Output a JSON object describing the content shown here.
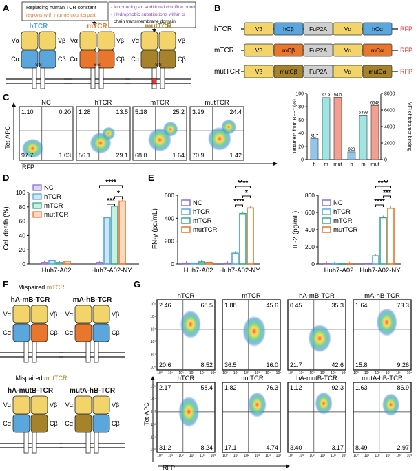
{
  "colors": {
    "hTCR": "#5aa6dd",
    "mTCR": "#e8762c",
    "mutTCR": "#a6822a",
    "variable": "#f2d46a",
    "fup2a": "#cfcfcf",
    "rfp": "#e03a3a",
    "nc": "#8f6fd0",
    "hbar": "#8fc6ec",
    "mbar": "#9fe6e3",
    "mutbar": "#f4a090",
    "annot_orange": "#e8762c",
    "annot_purple": "#8e3fbf"
  },
  "panel_a": {
    "letter": "A",
    "note_left": [
      "Replacing human TCR constant",
      "regions with murine counterpart"
    ],
    "note_right": [
      "- Introducing an additional disulfide bond",
      "- Hydrophobic substitutions within α",
      "chain transmembrane domain"
    ],
    "constructs": [
      {
        "title": "hTCR",
        "va": "Vα",
        "vb": "Vβ",
        "ca": "Cα",
        "cb": "Cβ",
        "ss": "S S"
      },
      {
        "title": "mTCR",
        "va": "Vα",
        "vb": "Vβ",
        "ca": "Cα",
        "cb": "Cβ",
        "ss": "S S"
      },
      {
        "title": "mutTCR",
        "va": "Vα",
        "vb": "Vβ",
        "ca": "Cα",
        "cb": "Cβ",
        "ss": "S S"
      }
    ]
  },
  "panel_b": {
    "letter": "B",
    "rows": [
      {
        "name": "hTCR",
        "segments": [
          "Vβ",
          "hCβ",
          "FuP2A",
          "Vα",
          "hCα"
        ],
        "tail": "RFP"
      },
      {
        "name": "mTCR",
        "segments": [
          "Vβ",
          "mCβ",
          "FuP2A",
          "Vα",
          "mCα"
        ],
        "tail": "RFP"
      },
      {
        "name": "mutTCR",
        "segments": [
          "Vβ",
          "mutCβ",
          "FuP2A",
          "Vα",
          "mutCα"
        ],
        "tail": "RFP"
      }
    ]
  },
  "panel_c": {
    "letter": "C",
    "ylabel": "Tet-APC",
    "xlabel": "RFP",
    "plots": [
      {
        "title": "NC",
        "q": [
          "1.10",
          "0.20",
          "97.7",
          "1.03"
        ]
      },
      {
        "title": "hTCR",
        "q": [
          "1.28",
          "13.5",
          "56.1",
          "29.1"
        ]
      },
      {
        "title": "mTCR",
        "q": [
          "5.18",
          "25.2",
          "68.0",
          "1.64"
        ]
      },
      {
        "title": "mutTCR",
        "q": [
          "3.29",
          "24.4",
          "70.9",
          "1.42"
        ]
      }
    ]
  },
  "panel_c_bar": {
    "ylabel_left": "Tetramer⁺ from RFP⁺ (%)",
    "ylabel_right": "MFI of tetramer binding",
    "left_ticks": [
      "0",
      "20",
      "40",
      "60",
      "80",
      "100"
    ],
    "right_ticks": [
      "0",
      "2000",
      "4000",
      "6000",
      "8000"
    ],
    "categories": [
      "h",
      "m",
      "mut",
      "h",
      "m",
      "mut"
    ],
    "labels": [
      "31.7",
      "93.9",
      "94.5",
      "923",
      "5393",
      "6548"
    ]
  },
  "panel_d": {
    "letter": "D",
    "ylabel": "Cell death (%)",
    "ticks": [
      "0",
      "20",
      "40",
      "60",
      "80",
      "100"
    ],
    "groups": [
      "Huh7-A02",
      "Huh7-A02-NY"
    ],
    "legend": [
      "NC",
      "hTCR",
      "mTCR",
      "mutTCR"
    ],
    "sig": [
      "****",
      "***",
      "*"
    ]
  },
  "panel_e": {
    "letter": "E",
    "ifn": {
      "ylabel": "IFN-γ (pg/mL)",
      "ticks": [
        "0",
        "200",
        "400",
        "600"
      ],
      "groups": [
        "Huh7-A02",
        "Huh7-A02-NY"
      ],
      "sig": [
        "****",
        "*",
        "****"
      ]
    },
    "il2": {
      "ylabel": "IL-2 (pg/mL)",
      "ticks": [
        "0",
        "200",
        "400",
        "600",
        "800"
      ],
      "groups": [
        "Huh7-A02",
        "Huh7-A02-NY"
      ],
      "sig": [
        "****",
        "***",
        "****"
      ]
    },
    "legend": [
      "NC",
      "hTCR",
      "mTCR",
      "mutTCR"
    ]
  },
  "panel_f": {
    "letter": "F",
    "title1_prefix": "Mispaired ",
    "title1_colored": "mTCR",
    "title2_prefix": "Mispaired ",
    "title2_colored": "mutTCR",
    "constructs": [
      {
        "title": "hA-mB-TCR",
        "va": "Vα",
        "vb": "Vβ",
        "ca": "Cα",
        "cb": "Cβ"
      },
      {
        "title": "mA-hB-TCR",
        "va": "Vα",
        "vb": "Vβ",
        "ca": "Cα",
        "cb": "Cβ"
      },
      {
        "title": "hA-mutB-TCR",
        "va": "Vα",
        "vb": "Vβ",
        "ca": "Cα",
        "cb": "Cβ"
      },
      {
        "title": "mutA-hB-TCR",
        "va": "Vα",
        "vb": "Vβ",
        "ca": "Cα",
        "cb": "Cβ"
      }
    ]
  },
  "panel_g": {
    "letter": "G",
    "ylabel": "Tet-APC",
    "xlabel": "RFP",
    "axis_ticks": [
      "10⁰",
      "10¹",
      "10²",
      "10³",
      "10⁴",
      "10⁵"
    ],
    "plots": [
      {
        "title": "hTCR",
        "q": [
          "2.46",
          "68.5",
          "20.6",
          "8.52"
        ]
      },
      {
        "title": "mTCR",
        "q": [
          "1.88",
          "45.6",
          "36.5",
          "16.0"
        ]
      },
      {
        "title": "hA-mB-TCR",
        "q": [
          "0.45",
          "35.3",
          "21.7",
          "42.6"
        ]
      },
      {
        "title": "mA-hB-TCR",
        "q": [
          "1.64",
          "73.3",
          "15.8",
          "9.26"
        ]
      },
      {
        "title": "hTCR",
        "q": [
          "2.17",
          "58.4",
          "31.2",
          "8.24"
        ]
      },
      {
        "title": "mutTCR",
        "q": [
          "1.82",
          "76.3",
          "17.1",
          "4.74"
        ]
      },
      {
        "title": "hA-mutB-TCR",
        "q": [
          "1.12",
          "92.3",
          "3.40",
          "3.17"
        ]
      },
      {
        "title": "mutA-hB-TCR",
        "q": [
          "1.63",
          "86.9",
          "8.49",
          "2.97"
        ]
      }
    ]
  }
}
